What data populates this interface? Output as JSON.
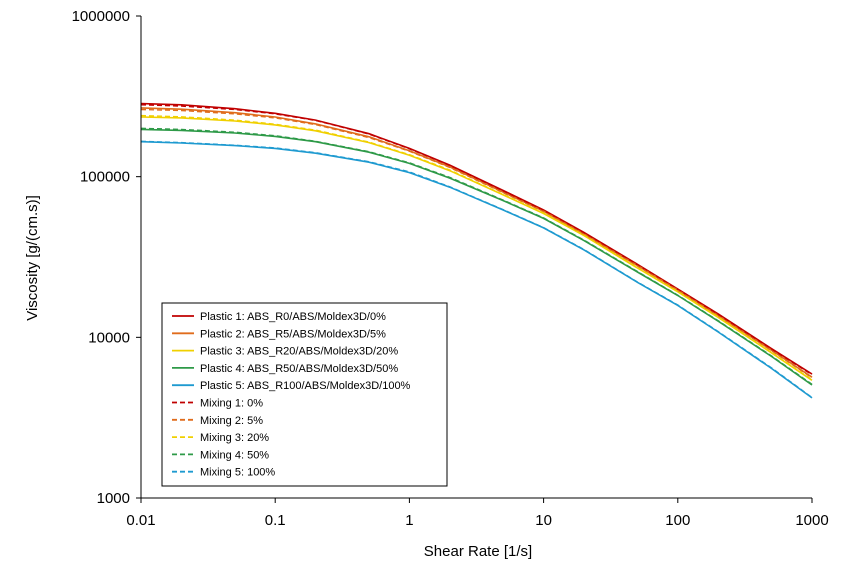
{
  "chart_data": {
    "type": "line",
    "title": "",
    "xlabel": "Shear Rate [1/s]",
    "ylabel": "Viscosity [g/(cm.s)]",
    "x_scale": "log",
    "y_scale": "log",
    "xlim": [
      0.01,
      1000
    ],
    "ylim": [
      1000,
      1000000
    ],
    "x_ticks": [
      "0.01",
      "0.1",
      "1",
      "10",
      "100",
      "1000"
    ],
    "y_ticks": [
      "1000",
      "10000",
      "100000",
      "1000000"
    ],
    "grid": false,
    "legend_position": "lower-left",
    "x": [
      0.01,
      0.02,
      0.05,
      0.1,
      0.2,
      0.5,
      1,
      2,
      5,
      10,
      20,
      50,
      100,
      200,
      500,
      1000
    ],
    "series": [
      {
        "name": "Plastic 1: ABS_R0/ABS/Moldex3D/0%",
        "color": "#c00000",
        "dashed": false,
        "values": [
          285000,
          280000,
          265000,
          248000,
          225000,
          185000,
          150000,
          118000,
          82000,
          62000,
          45000,
          28500,
          20000,
          14000,
          8500,
          5900
        ]
      },
      {
        "name": "Plastic 2: ABS_R5/ABS/Moldex3D/5%",
        "color": "#e06c1c",
        "dashed": false,
        "values": [
          268000,
          263000,
          250000,
          235000,
          213000,
          177000,
          145000,
          115000,
          80000,
          61000,
          44000,
          28000,
          19700,
          13700,
          8300,
          5650
        ]
      },
      {
        "name": "Plastic 3: ABS_R20/ABS/Moldex3D/20%",
        "color": "#f0d000",
        "dashed": false,
        "values": [
          235000,
          232000,
          222000,
          210000,
          193000,
          163000,
          136000,
          109000,
          77000,
          59000,
          43000,
          27000,
          19200,
          13300,
          8000,
          5400
        ]
      },
      {
        "name": "Plastic 4: ABS_R50/ABS/Moldex3D/50%",
        "color": "#2e9a48",
        "dashed": false,
        "values": [
          197000,
          194000,
          187000,
          178000,
          165000,
          142000,
          121000,
          98000,
          71000,
          55000,
          40000,
          25500,
          18200,
          12600,
          7600,
          5050
        ]
      },
      {
        "name": "Plastic 5: ABS_R100/ABS/Moldex3D/100%",
        "color": "#1e9ad0",
        "dashed": false,
        "values": [
          165000,
          162000,
          156000,
          150000,
          140000,
          123000,
          106000,
          86000,
          62000,
          48000,
          35000,
          22000,
          15800,
          10800,
          6400,
          4200
        ]
      },
      {
        "name": "Mixing 1: 0%",
        "color": "#c00000",
        "dashed": true,
        "values": [
          280000,
          275000,
          262000,
          246000,
          224000,
          184000,
          149000,
          117500,
          81500,
          61700,
          44800,
          28300,
          19900,
          13900,
          8450,
          5850
        ]
      },
      {
        "name": "Mixing 2: 5%",
        "color": "#e06c1c",
        "dashed": true,
        "values": [
          262000,
          258000,
          246000,
          232000,
          211000,
          175000,
          144000,
          114000,
          79500,
          60600,
          43800,
          27800,
          19600,
          13600,
          8250,
          5600
        ]
      },
      {
        "name": "Mixing 3: 20%",
        "color": "#f0d000",
        "dashed": true,
        "values": [
          240000,
          236000,
          225000,
          212000,
          195000,
          164000,
          137000,
          110000,
          77500,
          59400,
          43200,
          27200,
          19300,
          13400,
          8050,
          5450
        ]
      },
      {
        "name": "Mixing 4: 50%",
        "color": "#2e9a48",
        "dashed": true,
        "values": [
          200000,
          197000,
          189000,
          180000,
          166000,
          143000,
          122000,
          99000,
          71500,
          55400,
          40300,
          25700,
          18300,
          12700,
          7650,
          5100
        ]
      },
      {
        "name": "Mixing 5: 100%",
        "color": "#1e9ad0",
        "dashed": true,
        "values": [
          166000,
          163000,
          157000,
          151000,
          141000,
          124000,
          107000,
          86500,
          62300,
          48200,
          35200,
          22100,
          15900,
          10850,
          6450,
          4220
        ]
      }
    ]
  }
}
